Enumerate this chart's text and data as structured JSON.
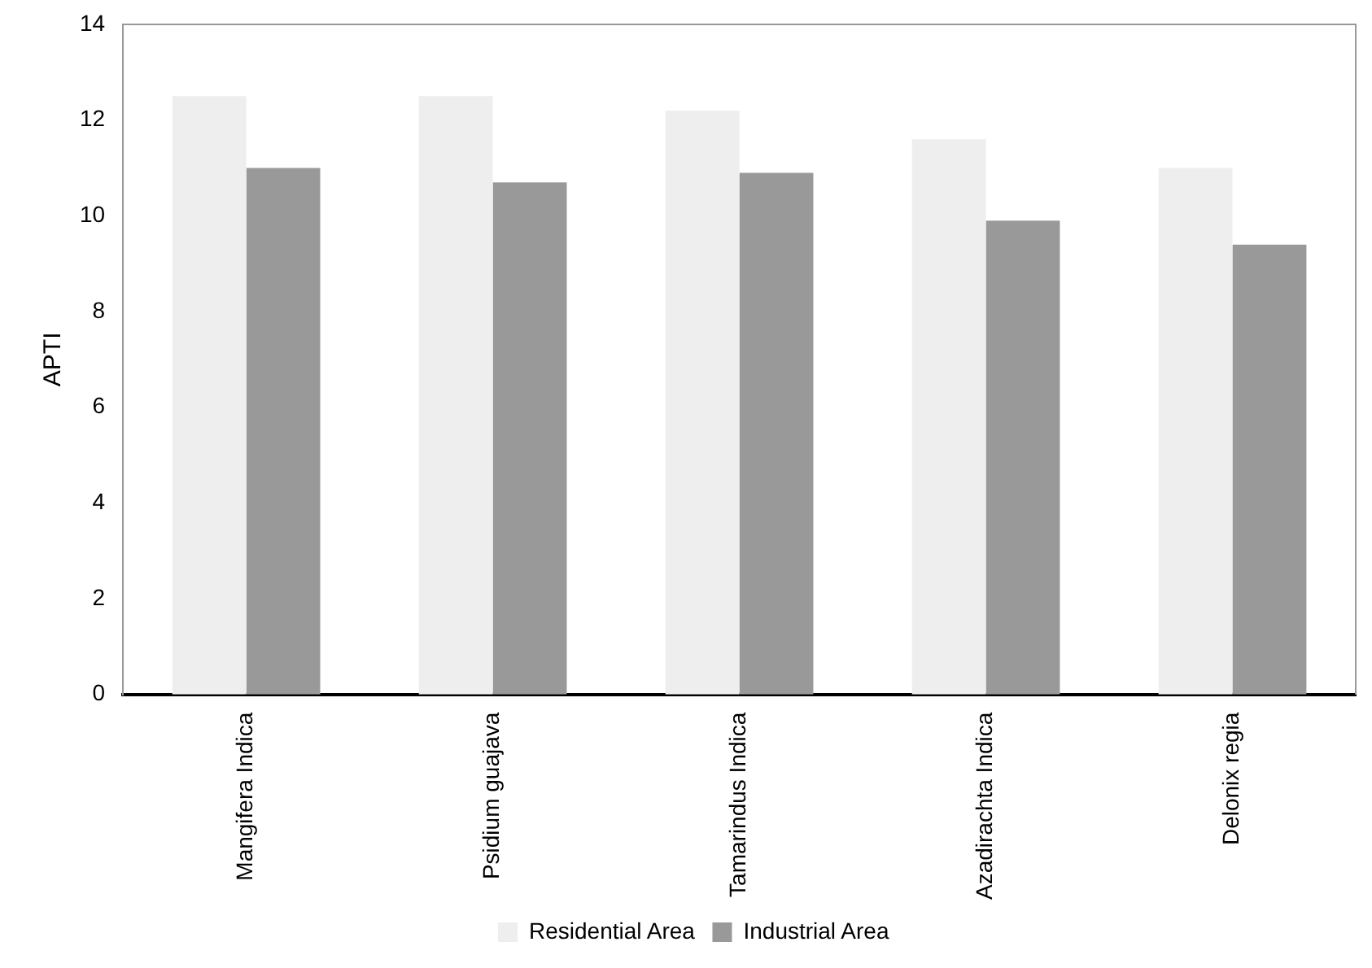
{
  "chart_data": {
    "type": "bar",
    "ylabel": "APTI",
    "categories": [
      "Mangifera Indica",
      "Psidium guajava",
      "Tamarindus Indica",
      "Azadirachta Indica",
      "Delonix regia"
    ],
    "series": [
      {
        "name": "Residential Area",
        "color": "#eeeeee",
        "values": [
          12.5,
          12.5,
          12.2,
          11.6,
          11.0
        ]
      },
      {
        "name": "Industrial Area",
        "color": "#999999",
        "values": [
          11.0,
          10.7,
          10.9,
          9.9,
          9.4
        ]
      }
    ],
    "ylim": [
      0,
      14
    ],
    "yticks": [
      0,
      2,
      4,
      6,
      8,
      10,
      12,
      14
    ],
    "grid": false,
    "legend": "bottom"
  }
}
